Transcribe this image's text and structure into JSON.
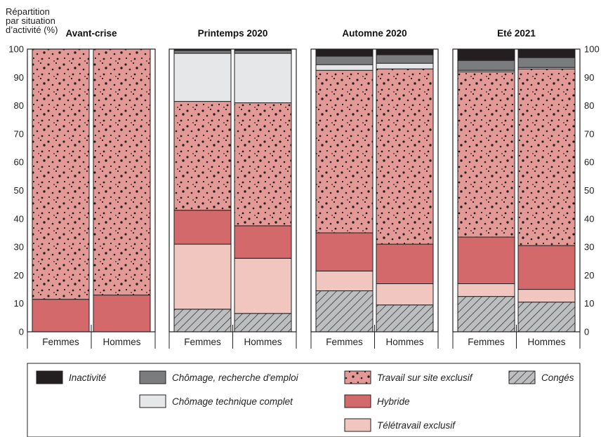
{
  "chart_data": {
    "type": "bar",
    "stacked": true,
    "ylabel": "Répartition par situation d’activité (%)",
    "ylabel_lines": [
      "Répartition",
      "par situation",
      "d’activité (%)"
    ],
    "ylim": [
      0,
      100
    ],
    "yticks": [
      0,
      10,
      20,
      30,
      40,
      50,
      60,
      70,
      80,
      90,
      100
    ],
    "categories": [
      "Femmes",
      "Hommes"
    ],
    "panels": [
      {
        "title": "Avant-crise",
        "stacks": [
          {
            "category": "Femmes",
            "values": {
              "conges": 0,
              "teletravail": 0,
              "hybride": 11.5,
              "site": 88.5,
              "chomage_tech": 0,
              "chomage": 0,
              "inactivite": 0
            }
          },
          {
            "category": "Hommes",
            "values": {
              "conges": 0,
              "teletravail": 0,
              "hybride": 13,
              "site": 87,
              "chomage_tech": 0,
              "chomage": 0,
              "inactivite": 0
            }
          }
        ]
      },
      {
        "title": "Printemps 2020",
        "stacks": [
          {
            "category": "Femmes",
            "values": {
              "conges": 8,
              "teletravail": 23,
              "hybride": 12,
              "site": 38.5,
              "chomage_tech": 17,
              "chomage": 1,
              "inactivite": 0.5
            }
          },
          {
            "category": "Hommes",
            "values": {
              "conges": 6.5,
              "teletravail": 19.5,
              "hybride": 11.5,
              "site": 43.5,
              "chomage_tech": 17.5,
              "chomage": 1,
              "inactivite": 0.5
            }
          }
        ]
      },
      {
        "title": "Automne 2020",
        "stacks": [
          {
            "category": "Femmes",
            "values": {
              "conges": 14.5,
              "teletravail": 7,
              "hybride": 13.5,
              "site": 57.5,
              "chomage_tech": 2,
              "chomage": 3,
              "inactivite": 2.5
            }
          },
          {
            "category": "Hommes",
            "values": {
              "conges": 9.5,
              "teletravail": 7.5,
              "hybride": 14,
              "site": 62,
              "chomage_tech": 2,
              "chomage": 3,
              "inactivite": 2
            }
          }
        ]
      },
      {
        "title": "Eté 2021",
        "stacks": [
          {
            "category": "Femmes",
            "values": {
              "conges": 12.5,
              "teletravail": 4.5,
              "hybride": 16.5,
              "site": 58.5,
              "chomage_tech": 0.5,
              "chomage": 3.5,
              "inactivite": 4
            }
          },
          {
            "category": "Hommes",
            "values": {
              "conges": 10.5,
              "teletravail": 4.5,
              "hybride": 15.5,
              "site": 62.5,
              "chomage_tech": 0.5,
              "chomage": 3.5,
              "inactivite": 3
            }
          }
        ]
      }
    ],
    "series": [
      {
        "key": "inactivite",
        "name": "Inactivité",
        "color": "#231f20"
      },
      {
        "key": "chomage",
        "name": "Chômage, recherche d'emploi",
        "color": "#7b7c7e"
      },
      {
        "key": "chomage_tech",
        "name": "Chômage technique complet",
        "color": "#e6e7e8"
      },
      {
        "key": "site",
        "name": "Travail sur site exclusif",
        "color": "#e39a96",
        "pattern": "dots"
      },
      {
        "key": "hybride",
        "name": "Hybride",
        "color": "#d4696b"
      },
      {
        "key": "teletravail",
        "name": "Télétravail exclusif",
        "color": "#f1c6bf"
      },
      {
        "key": "conges",
        "name": "Congés",
        "color": "#bcbec0",
        "pattern": "hatch"
      }
    ],
    "stack_order": [
      "conges",
      "teletravail",
      "hybride",
      "site",
      "chomage_tech",
      "chomage",
      "inactivite"
    ],
    "legend_position": "bottom",
    "grid": false
  }
}
